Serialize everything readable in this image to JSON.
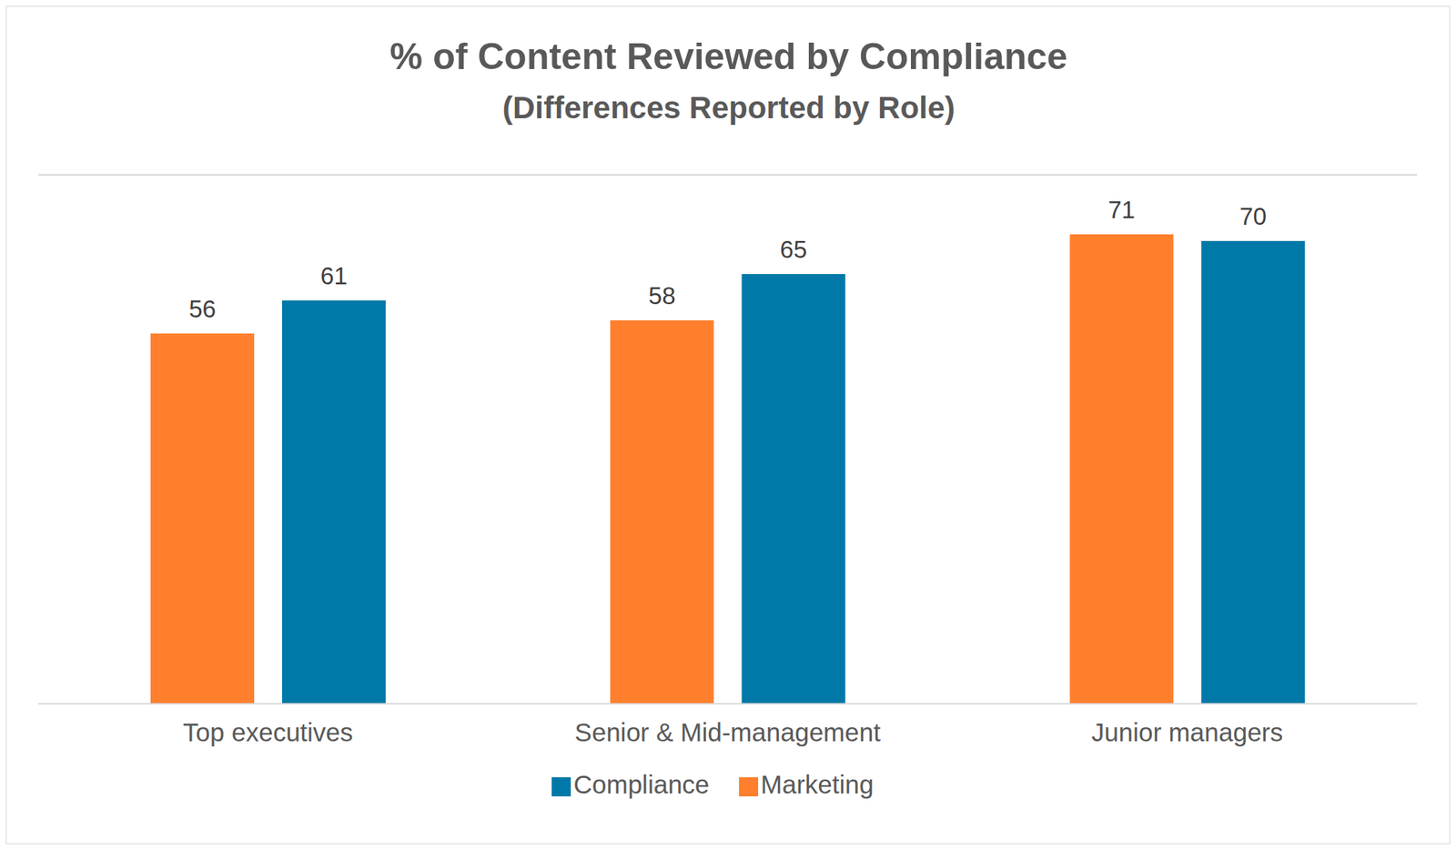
{
  "chart_data": {
    "type": "bar",
    "title": "% of Content Reviewed by Compliance",
    "subtitle": "(Differences Reported by Role)",
    "categories": [
      "Top executives",
      "Senior & Mid-management",
      "Junior managers"
    ],
    "series": [
      {
        "name": "Marketing",
        "color": "#ff7f2d",
        "values": [
          56,
          58,
          71
        ]
      },
      {
        "name": "Compliance",
        "color": "#0079a8",
        "values": [
          61,
          65,
          70
        ]
      }
    ],
    "ylim": [
      0,
      80
    ],
    "yticks": [
      0,
      10,
      20,
      30,
      40,
      50,
      60,
      70,
      80
    ],
    "grid": true,
    "legend": "bottom",
    "data_labels": true,
    "tick_labels": "x"
  }
}
